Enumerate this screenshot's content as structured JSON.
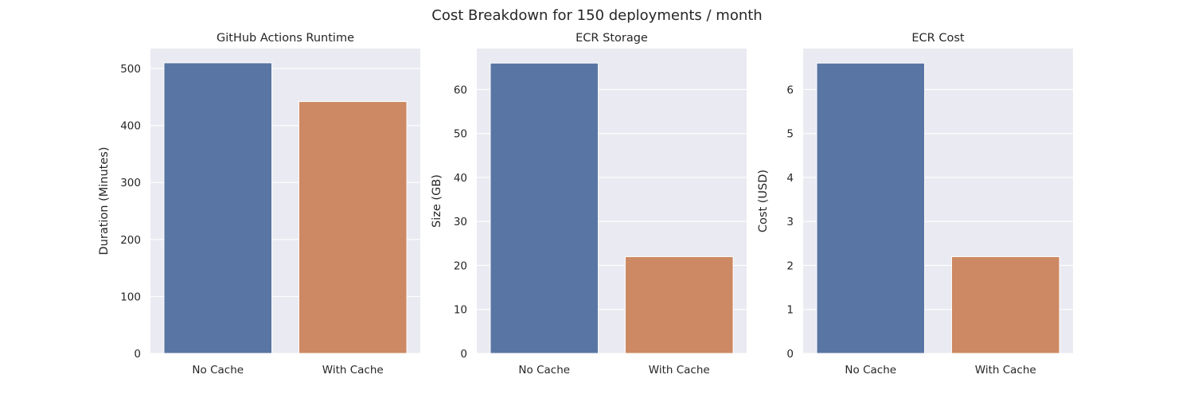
{
  "suptitle": "Cost Breakdown for 150 deployments / month",
  "colors": {
    "panel_background": "#EAEAF2",
    "grid": "#FFFFFF",
    "text": "#262626",
    "series_colors": [
      "#5975A4",
      "#CC8963"
    ]
  },
  "chart_data": [
    {
      "type": "bar",
      "title": "GitHub Actions Runtime",
      "xlabel": "",
      "ylabel": "Duration (Minutes)",
      "categories": [
        "No Cache",
        "With Cache"
      ],
      "values": [
        510,
        442
      ],
      "ylim": [
        0,
        535
      ],
      "yticks": [
        0,
        100,
        200,
        300,
        400,
        500
      ],
      "grid": true,
      "legend": "none"
    },
    {
      "type": "bar",
      "title": "ECR Storage",
      "xlabel": "",
      "ylabel": "Size (GB)",
      "categories": [
        "No Cache",
        "With Cache"
      ],
      "values": [
        66,
        22
      ],
      "ylim": [
        0,
        69.3
      ],
      "yticks": [
        0,
        10,
        20,
        30,
        40,
        50,
        60
      ],
      "grid": true,
      "legend": "none"
    },
    {
      "type": "bar",
      "title": "ECR Cost",
      "xlabel": "",
      "ylabel": "Cost (USD)",
      "categories": [
        "No Cache",
        "With Cache"
      ],
      "values": [
        6.6,
        2.2
      ],
      "ylim": [
        0,
        6.93
      ],
      "yticks": [
        0,
        1,
        2,
        3,
        4,
        5,
        6
      ],
      "grid": true,
      "legend": "none"
    }
  ]
}
